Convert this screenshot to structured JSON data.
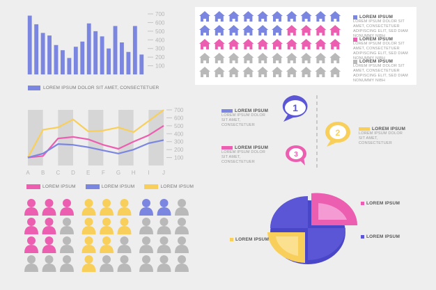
{
  "colors": {
    "blue": "#7b86e0",
    "blue_dark": "#5a56d6",
    "pink": "#ec5fb0",
    "yellow": "#f8cf5a",
    "gray": "#b9b9b9",
    "gray_light": "#d6d6d6"
  },
  "lorem_short": "LOREM IPSUM",
  "lorem_text": "LOREM IPSUM DOLOR SIT AMET, CONSECTETUER ADIPISCING ELIT, SED DIAM NONUMMY NIBH",
  "lorem_text_short": "LOREM IPSUM DOLOR SIT AMET, CONSECTETUER",
  "bar_chart": {
    "legend": "LOREM IPSUM DOLOR SIT AMET, CONSECTETUER",
    "ticks": [
      "700",
      "600",
      "500",
      "400",
      "300",
      "200",
      "100"
    ]
  },
  "line_chart": {
    "ticks": [
      "700",
      "600",
      "500",
      "400",
      "300",
      "200",
      "100"
    ],
    "categories": [
      "A",
      "B",
      "C",
      "D",
      "E",
      "F",
      "G",
      "H",
      "I",
      "J"
    ],
    "legend": [
      "LOREM IPSUM",
      "LOREM IPSUM",
      "LOREM IPSUM"
    ]
  },
  "house_legend": [
    "LOREM IPSUM",
    "LOREM IPSUM",
    "LOREM IPSUM"
  ],
  "steps": [
    "1",
    "2",
    "3"
  ],
  "step_labels": [
    "LOREM IPSUM",
    "LOREM IPSUM",
    "LOREM IPSUM"
  ],
  "pie_labels": [
    "LOREM IPSUM",
    "LOREM IPSUM",
    "LOREM IPSUM"
  ],
  "chart_data": [
    {
      "type": "bar",
      "ylim": [
        0,
        700
      ],
      "values": [
        680,
        580,
        480,
        450,
        340,
        280,
        190,
        320,
        380,
        590,
        500,
        440,
        300,
        560,
        370,
        260,
        560,
        230
      ]
    },
    {
      "type": "line",
      "categories": [
        "A",
        "B",
        "C",
        "D",
        "E",
        "F",
        "G",
        "H",
        "I",
        "J"
      ],
      "ylim": [
        0,
        700
      ],
      "series": [
        {
          "color": "#f8cf5a",
          "values": [
            100,
            450,
            480,
            580,
            430,
            440,
            480,
            420,
            560,
            700
          ]
        },
        {
          "color": "#ec5fb0",
          "values": [
            100,
            120,
            340,
            360,
            330,
            260,
            210,
            300,
            380,
            500
          ]
        },
        {
          "color": "#7b86e0",
          "values": [
            100,
            150,
            270,
            260,
            230,
            190,
            150,
            200,
            280,
            320
          ]
        }
      ]
    },
    {
      "type": "pie",
      "values": [
        25,
        25,
        25,
        25
      ],
      "colors": [
        "#ec5fb0",
        "#5a56d6",
        "#f8cf5a",
        "#5a56d6"
      ]
    }
  ]
}
